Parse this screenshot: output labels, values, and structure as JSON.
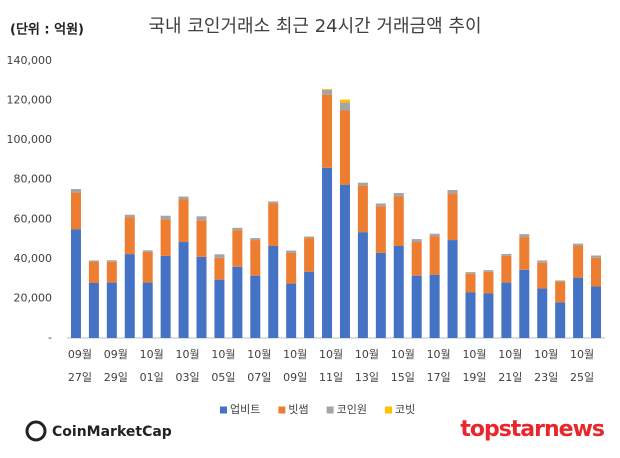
{
  "chart_data": {
    "type": "stacked_bar",
    "title": "국내 코인거래소 최근 24시간 거래금액 추이",
    "ylabel": "(단위 : 억원)",
    "categories": [
      [
        "09월",
        "27일"
      ],
      null,
      [
        "09월",
        "29일"
      ],
      null,
      [
        "10월",
        "01일"
      ],
      null,
      [
        "10월",
        "03일"
      ],
      null,
      [
        "10월",
        "05일"
      ],
      null,
      [
        "10월",
        "07일"
      ],
      null,
      [
        "10월",
        "09일"
      ],
      null,
      [
        "10월",
        "11일"
      ],
      null,
      [
        "10월",
        "13일"
      ],
      null,
      [
        "10월",
        "15일"
      ],
      null,
      [
        "10월",
        "17일"
      ],
      null,
      [
        "10월",
        "19일"
      ],
      null,
      [
        "10월",
        "21일"
      ],
      null,
      [
        "10월",
        "23일"
      ],
      null,
      [
        "10월",
        "25일"
      ],
      null
    ],
    "series": [
      {
        "name": "업비트",
        "color": "#4472c4",
        "values": [
          55000,
          27800,
          28000,
          42400,
          28000,
          41500,
          48500,
          41000,
          29500,
          36000,
          31500,
          46500,
          27500,
          33500,
          86000,
          77500,
          53500,
          43000,
          46500,
          31500,
          32000,
          49500,
          23000,
          22500,
          28000,
          34500,
          25000,
          18000,
          30500,
          26000
        ]
      },
      {
        "name": "빗썸",
        "color": "#ed7d31",
        "values": [
          18500,
          10600,
          10500,
          18700,
          15500,
          18500,
          21500,
          18500,
          11000,
          18500,
          18000,
          21500,
          15500,
          17000,
          37000,
          37500,
          23500,
          23500,
          25000,
          17000,
          19500,
          23500,
          9500,
          11000,
          13500,
          16500,
          13000,
          10500,
          16000,
          14500
        ]
      },
      {
        "name": "코인원",
        "color": "#a5a5a5",
        "values": [
          1800,
          800,
          800,
          1200,
          800,
          1800,
          1500,
          2000,
          1800,
          1200,
          1000,
          1000,
          1200,
          800,
          2500,
          4000,
          1500,
          1500,
          1800,
          1500,
          1200,
          1800,
          800,
          800,
          1000,
          1500,
          1200,
          600,
          1200,
          1200
        ]
      },
      {
        "name": "코빗",
        "color": "#ffc000",
        "values": [
          0,
          0,
          0,
          0,
          0,
          0,
          0,
          0,
          0,
          0,
          0,
          0,
          0,
          0,
          300,
          1500,
          0,
          0,
          0,
          0,
          0,
          0,
          0,
          0,
          0,
          0,
          0,
          0,
          0,
          0
        ]
      }
    ],
    "ylim": [
      0,
      140000
    ],
    "yticks": [
      {
        "value": 0,
        "label": "-"
      },
      {
        "value": 20000,
        "label": "20,000"
      },
      {
        "value": 40000,
        "label": "40,000"
      },
      {
        "value": 60000,
        "label": "60,000"
      },
      {
        "value": 80000,
        "label": "80,000"
      },
      {
        "value": 100000,
        "label": "100,000"
      },
      {
        "value": 120000,
        "label": "120,000"
      },
      {
        "value": 140000,
        "label": "140,000"
      }
    ],
    "grid": false,
    "legend": "bottom"
  },
  "logos": {
    "left": "CoinMarketCap",
    "right": "topstarnews"
  }
}
